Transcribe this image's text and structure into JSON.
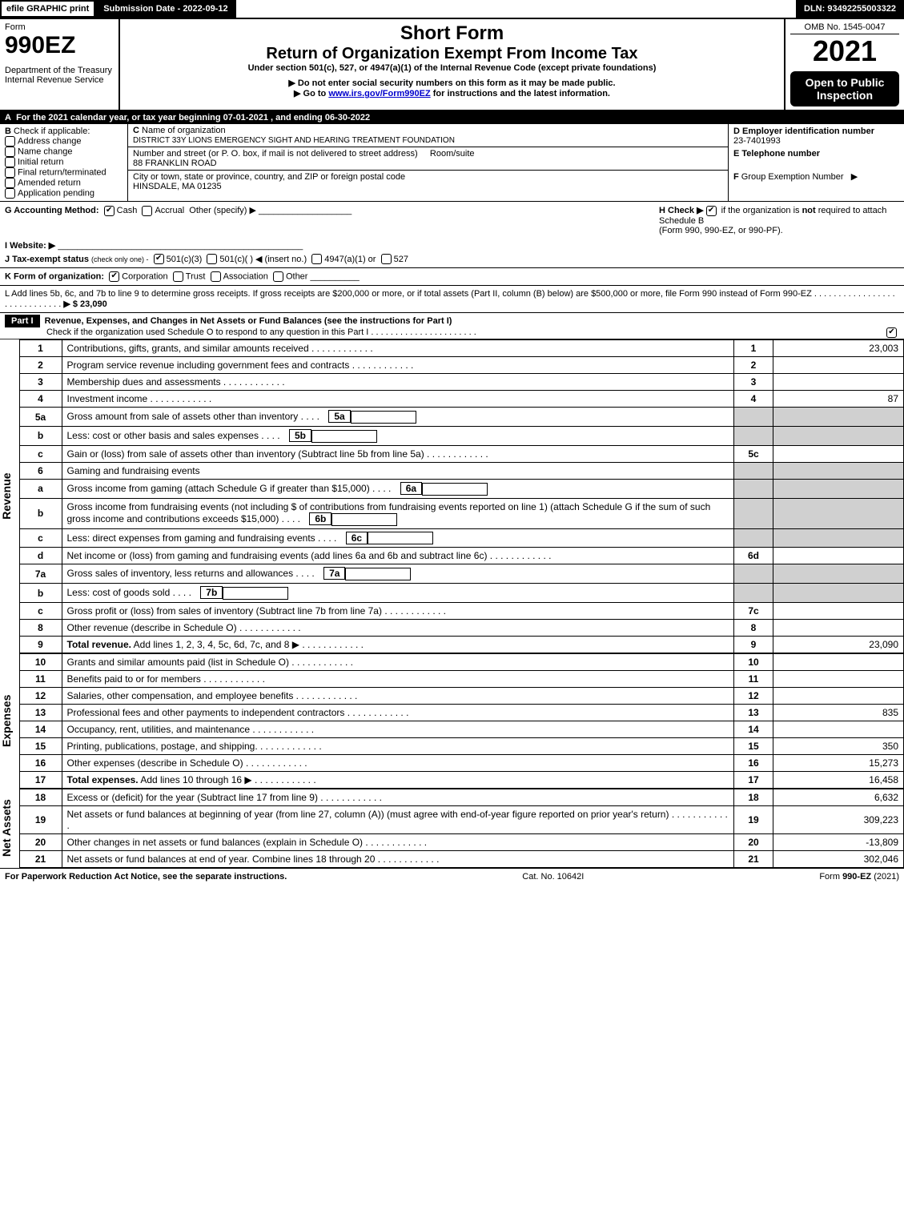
{
  "top": {
    "efile": "efile GRAPHIC print",
    "submission": "Submission Date - 2022-09-12",
    "dln": "DLN: 93492255003322"
  },
  "header": {
    "form_word": "Form",
    "form_no": "990EZ",
    "dept": "Department of the Treasury\nInternal Revenue Service",
    "title1": "Short Form",
    "title2": "Return of Organization Exempt From Income Tax",
    "sub1": "Under section 501(c), 527, or 4947(a)(1) of the Internal Revenue Code (except private foundations)",
    "sub2": "▶ Do not enter social security numbers on this form as it may be made public.",
    "sub3_pre": "▶ Go to ",
    "sub3_link": "www.irs.gov/Form990EZ",
    "sub3_post": " for instructions and the latest information.",
    "omb": "OMB No. 1545-0047",
    "year": "2021",
    "open": "Open to Public Inspection"
  },
  "A": {
    "text": "For the 2021 calendar year, or tax year beginning 07-01-2021 , and ending 06-30-2022"
  },
  "B": {
    "label": "Check if applicable:",
    "items": [
      "Address change",
      "Name change",
      "Initial return",
      "Final return/terminated",
      "Amended return",
      "Application pending"
    ]
  },
  "C": {
    "name_label": "Name of organization",
    "name": "DISTRICT 33Y LIONS EMERGENCY SIGHT AND HEARING TREATMENT FOUNDATION",
    "addr_label": "Number and street (or P. O. box, if mail is not delivered to street address)",
    "room_label": "Room/suite",
    "addr": "88 FRANKLIN ROAD",
    "city_label": "City or town, state or province, country, and ZIP or foreign postal code",
    "city": "HINSDALE, MA  01235"
  },
  "DEF": {
    "d_label": "D Employer identification number",
    "ein": "23-7401993",
    "e_label": "E Telephone number",
    "f_label": "F Group Exemption Number   ▶"
  },
  "G": {
    "label": "G Accounting Method:",
    "opts": [
      "Cash",
      "Accrual",
      "Other (specify) ▶"
    ]
  },
  "H": {
    "text1": "H  Check ▶",
    "text2": "if the organization is not required to attach Schedule B",
    "text3": "(Form 990, 990-EZ, or 990-PF)."
  },
  "I": {
    "label": "I Website: ▶"
  },
  "J": {
    "label": "J Tax-exempt status",
    "sub": "(check only one) -",
    "opts": [
      "501(c)(3)",
      "501(c)(   ) ◀ (insert no.)",
      "4947(a)(1) or",
      "527"
    ]
  },
  "K": {
    "label": "K Form of organization:",
    "opts": [
      "Corporation",
      "Trust",
      "Association",
      "Other"
    ]
  },
  "L": {
    "text": "L Add lines 5b, 6c, and 7b to line 9 to determine gross receipts. If gross receipts are $200,000 or more, or if total assets (Part II, column (B) below) are $500,000 or more, file Form 990 instead of Form 990-EZ",
    "amount": "▶ $ 23,090"
  },
  "part1": {
    "label": "Part I",
    "title": "Revenue, Expenses, and Changes in Net Assets or Fund Balances (see the instructions for Part I)",
    "check": "Check if the organization used Schedule O to respond to any question in this Part I"
  },
  "sections": {
    "revenue": "Revenue",
    "expenses": "Expenses",
    "netassets": "Net Assets"
  },
  "lines": [
    {
      "n": "1",
      "d": "Contributions, gifts, grants, and similar amounts received",
      "box": "1",
      "v": "23,003"
    },
    {
      "n": "2",
      "d": "Program service revenue including government fees and contracts",
      "box": "2",
      "v": ""
    },
    {
      "n": "3",
      "d": "Membership dues and assessments",
      "box": "3",
      "v": ""
    },
    {
      "n": "4",
      "d": "Investment income",
      "box": "4",
      "v": "87"
    },
    {
      "n": "5a",
      "d": "Gross amount from sale of assets other than inventory",
      "sub": "5a",
      "shade": true
    },
    {
      "n": "b",
      "d": "Less: cost or other basis and sales expenses",
      "sub": "5b",
      "shade": true
    },
    {
      "n": "c",
      "d": "Gain or (loss) from sale of assets other than inventory (Subtract line 5b from line 5a)",
      "box": "5c",
      "v": ""
    },
    {
      "n": "6",
      "d": "Gaming and fundraising events",
      "shade": true,
      "noval": true
    },
    {
      "n": "a",
      "d": "Gross income from gaming (attach Schedule G if greater than $15,000)",
      "sub": "6a",
      "shade": true
    },
    {
      "n": "b",
      "d": "Gross income from fundraising events (not including $                     of contributions from fundraising events reported on line 1) (attach Schedule G if the sum of such gross income and contributions exceeds $15,000)",
      "sub": "6b",
      "shade": true
    },
    {
      "n": "c",
      "d": "Less: direct expenses from gaming and fundraising events",
      "sub": "6c",
      "shade": true
    },
    {
      "n": "d",
      "d": "Net income or (loss) from gaming and fundraising events (add lines 6a and 6b and subtract line 6c)",
      "box": "6d",
      "v": ""
    },
    {
      "n": "7a",
      "d": "Gross sales of inventory, less returns and allowances",
      "sub": "7a",
      "shade": true
    },
    {
      "n": "b",
      "d": "Less: cost of goods sold",
      "sub": "7b",
      "shade": true
    },
    {
      "n": "c",
      "d": "Gross profit or (loss) from sales of inventory (Subtract line 7b from line 7a)",
      "box": "7c",
      "v": ""
    },
    {
      "n": "8",
      "d": "Other revenue (describe in Schedule O)",
      "box": "8",
      "v": ""
    },
    {
      "n": "9",
      "d": "Total revenue. Add lines 1, 2, 3, 4, 5c, 6d, 7c, and 8   ▶",
      "box": "9",
      "v": "23,090",
      "bold": true
    }
  ],
  "exp_lines": [
    {
      "n": "10",
      "d": "Grants and similar amounts paid (list in Schedule O)",
      "box": "10",
      "v": ""
    },
    {
      "n": "11",
      "d": "Benefits paid to or for members",
      "box": "11",
      "v": ""
    },
    {
      "n": "12",
      "d": "Salaries, other compensation, and employee benefits",
      "box": "12",
      "v": ""
    },
    {
      "n": "13",
      "d": "Professional fees and other payments to independent contractors",
      "box": "13",
      "v": "835"
    },
    {
      "n": "14",
      "d": "Occupancy, rent, utilities, and maintenance",
      "box": "14",
      "v": ""
    },
    {
      "n": "15",
      "d": "Printing, publications, postage, and shipping.",
      "box": "15",
      "v": "350"
    },
    {
      "n": "16",
      "d": "Other expenses (describe in Schedule O)",
      "box": "16",
      "v": "15,273"
    },
    {
      "n": "17",
      "d": "Total expenses. Add lines 10 through 16   ▶",
      "box": "17",
      "v": "16,458",
      "bold": true
    }
  ],
  "na_lines": [
    {
      "n": "18",
      "d": "Excess or (deficit) for the year (Subtract line 17 from line 9)",
      "box": "18",
      "v": "6,632"
    },
    {
      "n": "19",
      "d": "Net assets or fund balances at beginning of year (from line 27, column (A)) (must agree with end-of-year figure reported on prior year's return)",
      "box": "19",
      "v": "309,223"
    },
    {
      "n": "20",
      "d": "Other changes in net assets or fund balances (explain in Schedule O)",
      "box": "20",
      "v": "-13,809"
    },
    {
      "n": "21",
      "d": "Net assets or fund balances at end of year. Combine lines 18 through 20",
      "box": "21",
      "v": "302,046"
    }
  ],
  "footer": {
    "left": "For Paperwork Reduction Act Notice, see the separate instructions.",
    "mid": "Cat. No. 10642I",
    "right": "Form 990-EZ (2021)"
  }
}
